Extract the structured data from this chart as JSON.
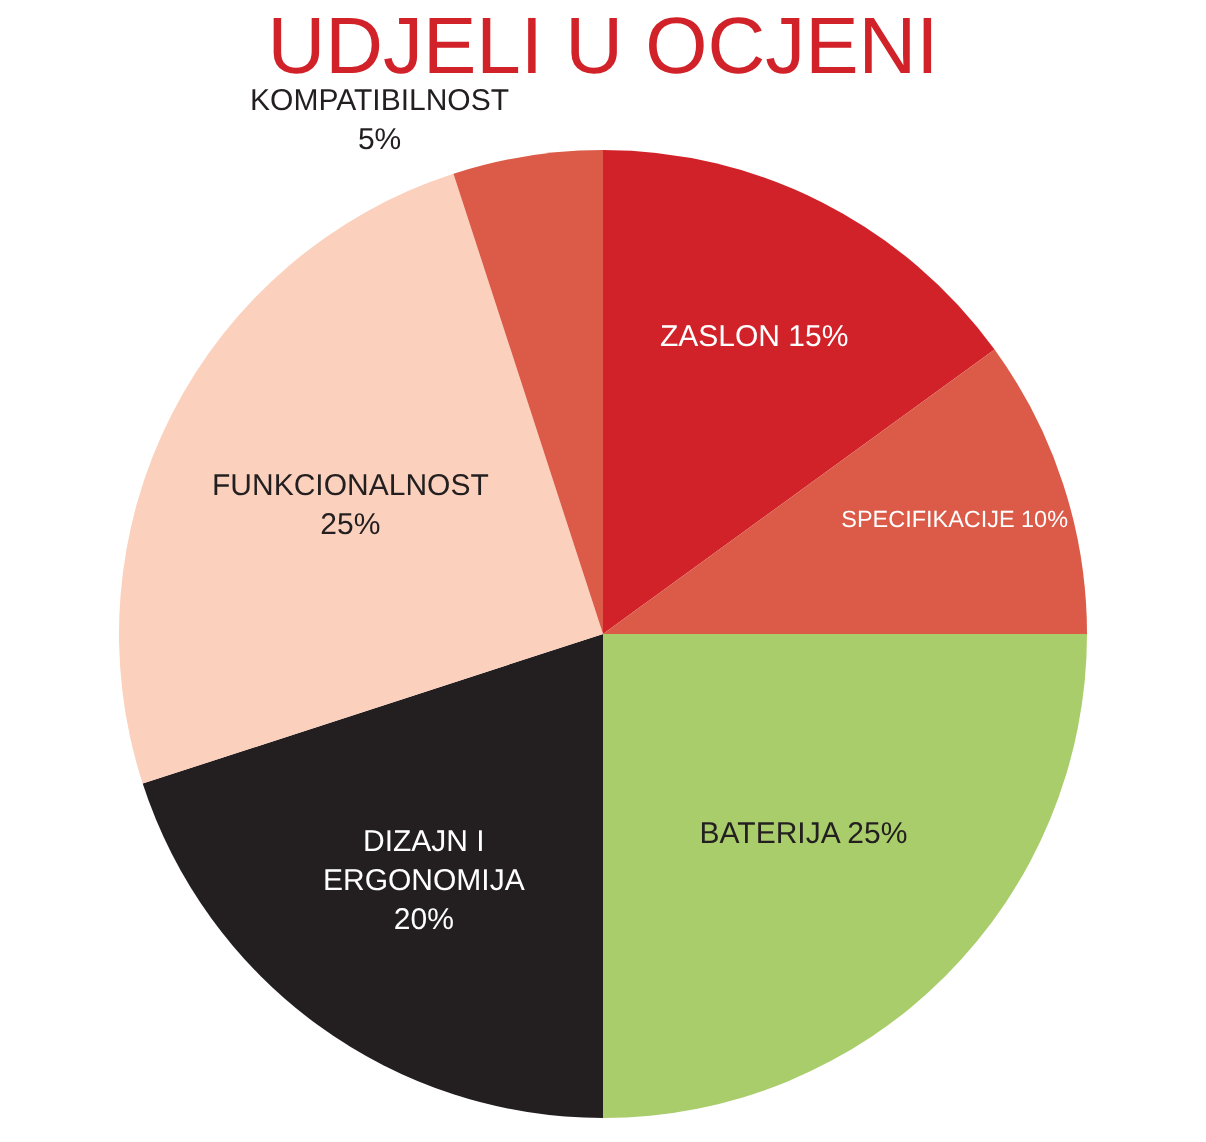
{
  "chart_data": {
    "type": "pie",
    "title": "UDJELI U OCJENI",
    "categories": [
      "ZASLON 15%",
      "SPECIFIKACIJE 10%",
      "BATERIJA 25%",
      "DIZAJN I\nERGONOMIJA\n20%",
      "FUNKCIONALNOST\n25%",
      "KOMPATIBILNOST\n5%"
    ],
    "values": [
      15,
      10,
      25,
      20,
      25,
      5
    ],
    "colors": [
      "#d22229",
      "#dc5b48",
      "#a9cd6b",
      "#231f20",
      "#fbd1bd",
      "#dc5b48"
    ],
    "legend": false
  }
}
